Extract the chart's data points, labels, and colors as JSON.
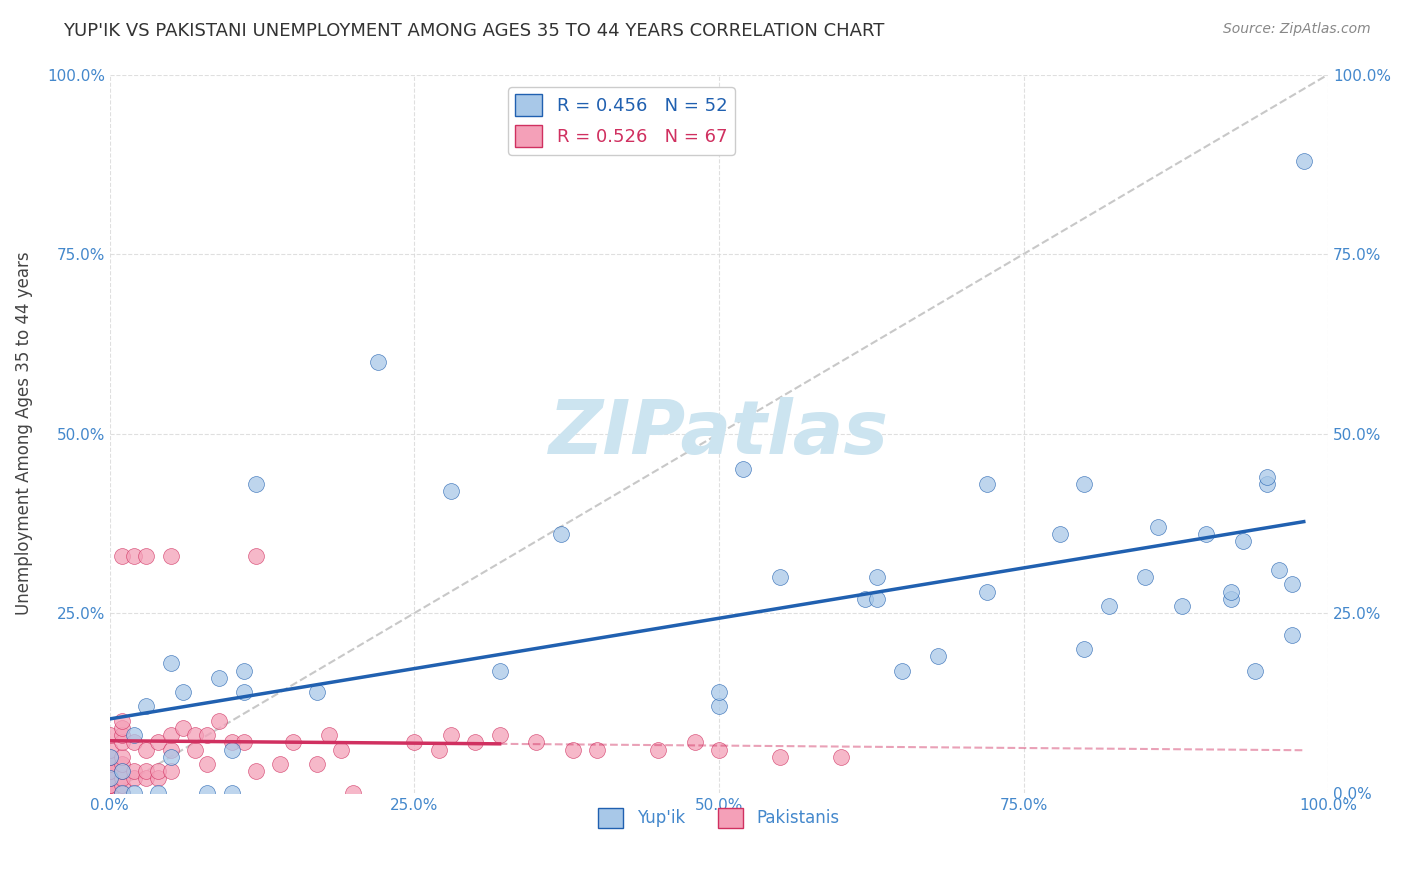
{
  "title": "YUP'IK VS PAKISTANI UNEMPLOYMENT AMONG AGES 35 TO 44 YEARS CORRELATION CHART",
  "source": "Source: ZipAtlas.com",
  "ylabel": "Unemployment Among Ages 35 to 44 years",
  "xlim": [
    0.0,
    1.0
  ],
  "ylim": [
    0.0,
    1.0
  ],
  "xticks": [
    0.0,
    0.25,
    0.5,
    0.75,
    1.0
  ],
  "yticks_left": [
    0.25,
    0.5,
    0.75,
    1.0
  ],
  "yticks_right": [
    0.0,
    0.25,
    0.5,
    0.75,
    1.0
  ],
  "xtick_labels": [
    "0.0%",
    "25.0%",
    "50.0%",
    "75.0%",
    "100.0%"
  ],
  "ytick_labels_left": [
    "25.0%",
    "50.0%",
    "75.0%",
    "100.0%"
  ],
  "ytick_labels_right": [
    "0.0%",
    "25.0%",
    "50.0%",
    "75.0%",
    "100.0%"
  ],
  "yup_ik_color": "#a8c8e8",
  "pakistani_color": "#f4a0b8",
  "yup_ik_line_color": "#2060b0",
  "pakistani_line_color": "#d03060",
  "diagonal_color": "#c8c8c8",
  "watermark_color": "#cce4f0",
  "legend_yup_ik_R": "0.456",
  "legend_yup_ik_N": "52",
  "legend_pakistani_R": "0.526",
  "legend_pakistani_N": "67",
  "yup_ik_x": [
    0.0,
    0.0,
    0.01,
    0.01,
    0.02,
    0.02,
    0.03,
    0.04,
    0.05,
    0.05,
    0.06,
    0.08,
    0.09,
    0.1,
    0.1,
    0.11,
    0.11,
    0.12,
    0.17,
    0.22,
    0.28,
    0.32,
    0.37,
    0.5,
    0.5,
    0.52,
    0.55,
    0.62,
    0.63,
    0.63,
    0.65,
    0.68,
    0.72,
    0.72,
    0.78,
    0.8,
    0.8,
    0.82,
    0.85,
    0.86,
    0.88,
    0.9,
    0.92,
    0.92,
    0.93,
    0.94,
    0.95,
    0.95,
    0.96,
    0.97,
    0.97,
    0.98
  ],
  "yup_ik_y": [
    0.02,
    0.05,
    0.0,
    0.03,
    0.0,
    0.08,
    0.12,
    0.0,
    0.05,
    0.18,
    0.14,
    0.0,
    0.16,
    0.0,
    0.06,
    0.14,
    0.17,
    0.43,
    0.14,
    0.6,
    0.42,
    0.17,
    0.36,
    0.12,
    0.14,
    0.45,
    0.3,
    0.27,
    0.27,
    0.3,
    0.17,
    0.19,
    0.28,
    0.43,
    0.36,
    0.2,
    0.43,
    0.26,
    0.3,
    0.37,
    0.26,
    0.36,
    0.27,
    0.28,
    0.35,
    0.17,
    0.43,
    0.44,
    0.31,
    0.22,
    0.29,
    0.88
  ],
  "pakistani_x": [
    0.0,
    0.0,
    0.0,
    0.0,
    0.0,
    0.0,
    0.0,
    0.0,
    0.0,
    0.0,
    0.0,
    0.0,
    0.01,
    0.01,
    0.01,
    0.01,
    0.01,
    0.01,
    0.01,
    0.01,
    0.01,
    0.01,
    0.01,
    0.02,
    0.02,
    0.02,
    0.02,
    0.03,
    0.03,
    0.03,
    0.03,
    0.04,
    0.04,
    0.04,
    0.05,
    0.05,
    0.05,
    0.05,
    0.06,
    0.07,
    0.07,
    0.08,
    0.08,
    0.09,
    0.1,
    0.11,
    0.12,
    0.12,
    0.14,
    0.15,
    0.17,
    0.18,
    0.19,
    0.2,
    0.25,
    0.27,
    0.28,
    0.3,
    0.32,
    0.35,
    0.38,
    0.4,
    0.45,
    0.48,
    0.5,
    0.55,
    0.6
  ],
  "pakistani_y": [
    0.0,
    0.0,
    0.0,
    0.01,
    0.01,
    0.02,
    0.03,
    0.03,
    0.04,
    0.05,
    0.06,
    0.08,
    0.0,
    0.01,
    0.02,
    0.03,
    0.04,
    0.05,
    0.07,
    0.08,
    0.09,
    0.1,
    0.33,
    0.02,
    0.03,
    0.07,
    0.33,
    0.02,
    0.03,
    0.06,
    0.33,
    0.02,
    0.03,
    0.07,
    0.03,
    0.06,
    0.08,
    0.33,
    0.09,
    0.06,
    0.08,
    0.04,
    0.08,
    0.1,
    0.07,
    0.07,
    0.03,
    0.33,
    0.04,
    0.07,
    0.04,
    0.08,
    0.06,
    0.0,
    0.07,
    0.06,
    0.08,
    0.07,
    0.08,
    0.07,
    0.06,
    0.06,
    0.06,
    0.07,
    0.06,
    0.05,
    0.05
  ],
  "background_color": "#ffffff",
  "grid_color": "#d8d8d8",
  "tick_color": "#4488cc",
  "title_color": "#333333",
  "source_color": "#888888",
  "ylabel_color": "#444444"
}
